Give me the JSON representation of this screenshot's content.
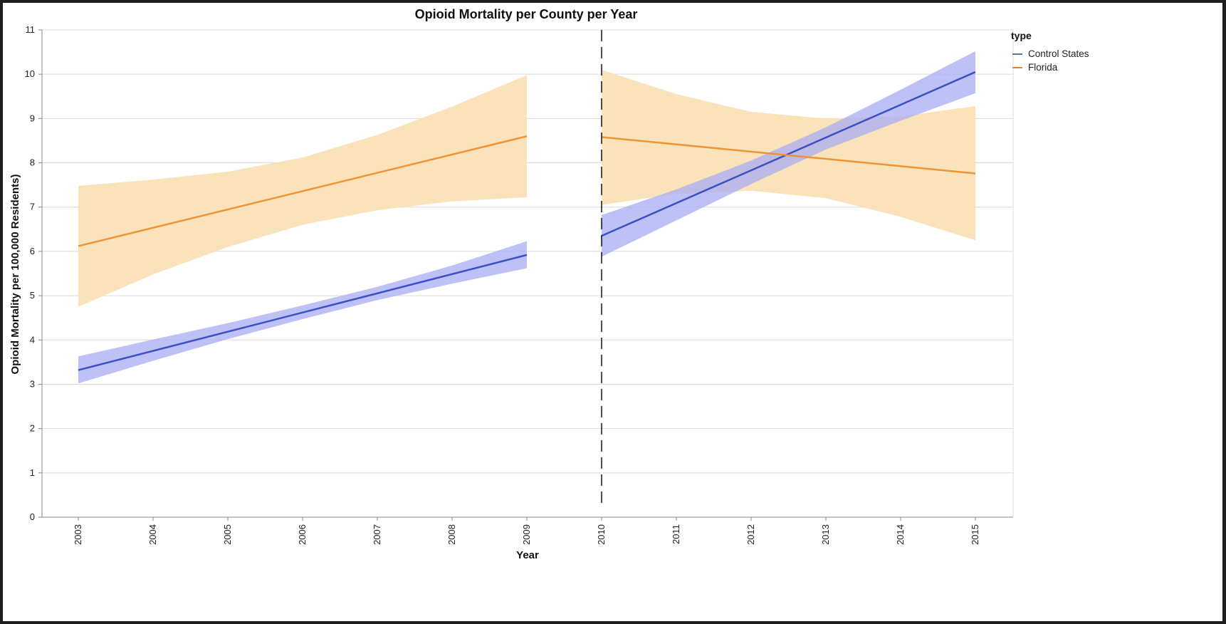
{
  "chart_data": {
    "type": "line",
    "title": "Opioid Mortality per County per Year",
    "xlabel": "Year",
    "ylabel": "Opioid Mortality per 100,000 Residents)",
    "x_ticks": [
      "2003",
      "2004",
      "2005",
      "2006",
      "2007",
      "2008",
      "2009",
      "2010",
      "2011",
      "2012",
      "2013",
      "2014",
      "2015"
    ],
    "ylim": [
      0,
      11
    ],
    "y_ticks": [
      0,
      1,
      2,
      3,
      4,
      5,
      6,
      7,
      8,
      9,
      10,
      11
    ],
    "grid": true,
    "policy_line": {
      "x": "2010",
      "style": "dashed"
    },
    "legend": {
      "title": "type",
      "placement": "top-right"
    },
    "series": [
      {
        "name": "Control States",
        "legend_color": "#4c78a8",
        "line_color": "#3d4fc4",
        "band_color": "#a8acf3",
        "segments": [
          {
            "x": [
              2003,
              2009
            ],
            "y": [
              3.32,
              5.92
            ],
            "band_x": [
              2003,
              2004,
              2005,
              2006,
              2007,
              2008,
              2009
            ],
            "band_lower": [
              3.02,
              3.53,
              4.02,
              4.47,
              4.9,
              5.27,
              5.62
            ],
            "band_upper": [
              3.63,
              4.01,
              4.38,
              4.78,
              5.2,
              5.68,
              6.23
            ]
          },
          {
            "x": [
              2010,
              2015
            ],
            "y": [
              6.35,
              10.05
            ],
            "band_x": [
              2010,
              2011,
              2012,
              2013,
              2014,
              2015
            ],
            "band_lower": [
              5.88,
              6.7,
              7.52,
              8.3,
              8.95,
              9.57
            ],
            "band_upper": [
              6.82,
              7.4,
              8.05,
              8.8,
              9.65,
              10.52
            ]
          }
        ]
      },
      {
        "name": "Florida",
        "legend_color": "#f58518",
        "line_color": "#ee9435",
        "band_color": "#f9e0b4",
        "segments": [
          {
            "x": [
              2003,
              2009
            ],
            "y": [
              6.12,
              8.6
            ],
            "band_x": [
              2003,
              2004,
              2005,
              2006,
              2007,
              2008,
              2009
            ],
            "band_lower": [
              4.75,
              5.48,
              6.1,
              6.6,
              6.93,
              7.13,
              7.22
            ],
            "band_upper": [
              7.48,
              7.62,
              7.8,
              8.12,
              8.63,
              9.27,
              9.98
            ]
          },
          {
            "x": [
              2010,
              2015
            ],
            "y": [
              8.58,
              7.76
            ],
            "band_x": [
              2010,
              2011,
              2012,
              2013,
              2014,
              2015
            ],
            "band_lower": [
              7.05,
              7.3,
              7.37,
              7.2,
              6.78,
              6.25
            ],
            "band_upper": [
              10.1,
              9.55,
              9.15,
              9.0,
              9.05,
              9.28
            ]
          }
        ]
      }
    ]
  }
}
